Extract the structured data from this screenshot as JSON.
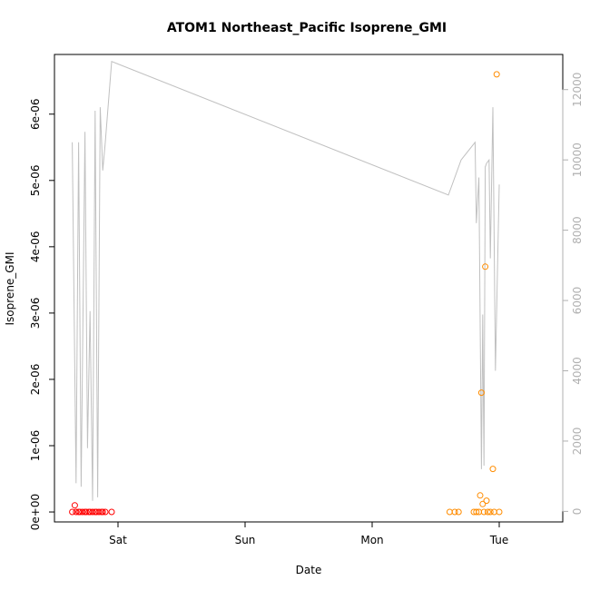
{
  "chart_data": {
    "type": "scatter",
    "title": "ATOM1 Northeast_Pacific Isoprene_GMI",
    "xlabel": "Date",
    "ylabel": "Isoprene_GMI",
    "x_unit": "days",
    "xlim": [
      -0.5,
      3.5
    ],
    "ylim": [
      -1.5e-07,
      6.9e-06
    ],
    "y2lim": [
      -300,
      13000
    ],
    "x_ticks": [
      {
        "value": 0,
        "label": "Sat"
      },
      {
        "value": 1,
        "label": "Sun"
      },
      {
        "value": 2,
        "label": "Mon"
      },
      {
        "value": 3,
        "label": "Tue"
      }
    ],
    "y_ticks": [
      {
        "value": 0,
        "label": "0e+00"
      },
      {
        "value": 1e-06,
        "label": "1e-06"
      },
      {
        "value": 2e-06,
        "label": "2e-06"
      },
      {
        "value": 3e-06,
        "label": "3e-06"
      },
      {
        "value": 4e-06,
        "label": "4e-06"
      },
      {
        "value": 5e-06,
        "label": "5e-06"
      },
      {
        "value": 6e-06,
        "label": "6e-06"
      }
    ],
    "y2_ticks": [
      {
        "value": 0,
        "label": "0"
      },
      {
        "value": 2000,
        "label": "2000"
      },
      {
        "value": 4000,
        "label": "4000"
      },
      {
        "value": 6000,
        "label": "6000"
      },
      {
        "value": 8000,
        "label": "8000"
      },
      {
        "value": 10000,
        "label": "10000"
      },
      {
        "value": 12000,
        "label": "12000"
      }
    ],
    "series": [
      {
        "color": "#ff0000",
        "marker": "open-circle",
        "axis": "left",
        "points": [
          [
            -0.36,
            0.0
          ],
          [
            -0.34,
            1e-07
          ],
          [
            -0.33,
            0.0
          ],
          [
            -0.31,
            0.0
          ],
          [
            -0.3,
            0.0
          ],
          [
            -0.28,
            0.0
          ],
          [
            -0.26,
            0.0
          ],
          [
            -0.25,
            0.0
          ],
          [
            -0.23,
            0.0
          ],
          [
            -0.22,
            0.0
          ],
          [
            -0.2,
            0.0
          ],
          [
            -0.18,
            0.0
          ],
          [
            -0.17,
            0.0
          ],
          [
            -0.15,
            0.0
          ],
          [
            -0.13,
            0.0
          ],
          [
            -0.12,
            0.0
          ],
          [
            -0.1,
            0.0
          ],
          [
            -0.05,
            0.0
          ]
        ]
      },
      {
        "color": "#ff8c00",
        "marker": "open-circle",
        "axis": "left",
        "points": [
          [
            2.61,
            0.0
          ],
          [
            2.65,
            0.0
          ],
          [
            2.68,
            0.0
          ],
          [
            2.8,
            0.0
          ],
          [
            2.82,
            0.0
          ],
          [
            2.84,
            0.0
          ],
          [
            2.85,
            2.5e-07
          ],
          [
            2.86,
            1.8e-06
          ],
          [
            2.87,
            1.2e-07
          ],
          [
            2.88,
            0.0
          ],
          [
            2.89,
            3.7e-06
          ],
          [
            2.9,
            1.7e-07
          ],
          [
            2.91,
            0.0
          ],
          [
            2.93,
            0.0
          ],
          [
            2.95,
            6.5e-07
          ],
          [
            2.96,
            0.0
          ],
          [
            2.98,
            6.6e-06
          ],
          [
            3.0,
            0.0
          ]
        ]
      }
    ],
    "line_series": {
      "color": "#c0c0c0",
      "axis": "right",
      "points": [
        [
          -0.36,
          10500
        ],
        [
          -0.33,
          800
        ],
        [
          -0.31,
          10500
        ],
        [
          -0.29,
          700
        ],
        [
          -0.26,
          10800
        ],
        [
          -0.24,
          1800
        ],
        [
          -0.22,
          5700
        ],
        [
          -0.2,
          300
        ],
        [
          -0.18,
          11400
        ],
        [
          -0.16,
          400
        ],
        [
          -0.14,
          11500
        ],
        [
          -0.12,
          9700
        ],
        [
          -0.1,
          10500
        ],
        [
          -0.05,
          12800
        ],
        [
          2.6,
          9000
        ],
        [
          2.7,
          10000
        ],
        [
          2.81,
          10500
        ],
        [
          2.82,
          8200
        ],
        [
          2.84,
          9500
        ],
        [
          2.86,
          1200
        ],
        [
          2.87,
          5600
        ],
        [
          2.88,
          1300
        ],
        [
          2.89,
          9800
        ],
        [
          2.9,
          9900
        ],
        [
          2.92,
          10000
        ],
        [
          2.93,
          7200
        ],
        [
          2.95,
          11500
        ],
        [
          2.97,
          4000
        ],
        [
          3.0,
          9300
        ]
      ]
    },
    "grid": false,
    "legend": "none"
  }
}
